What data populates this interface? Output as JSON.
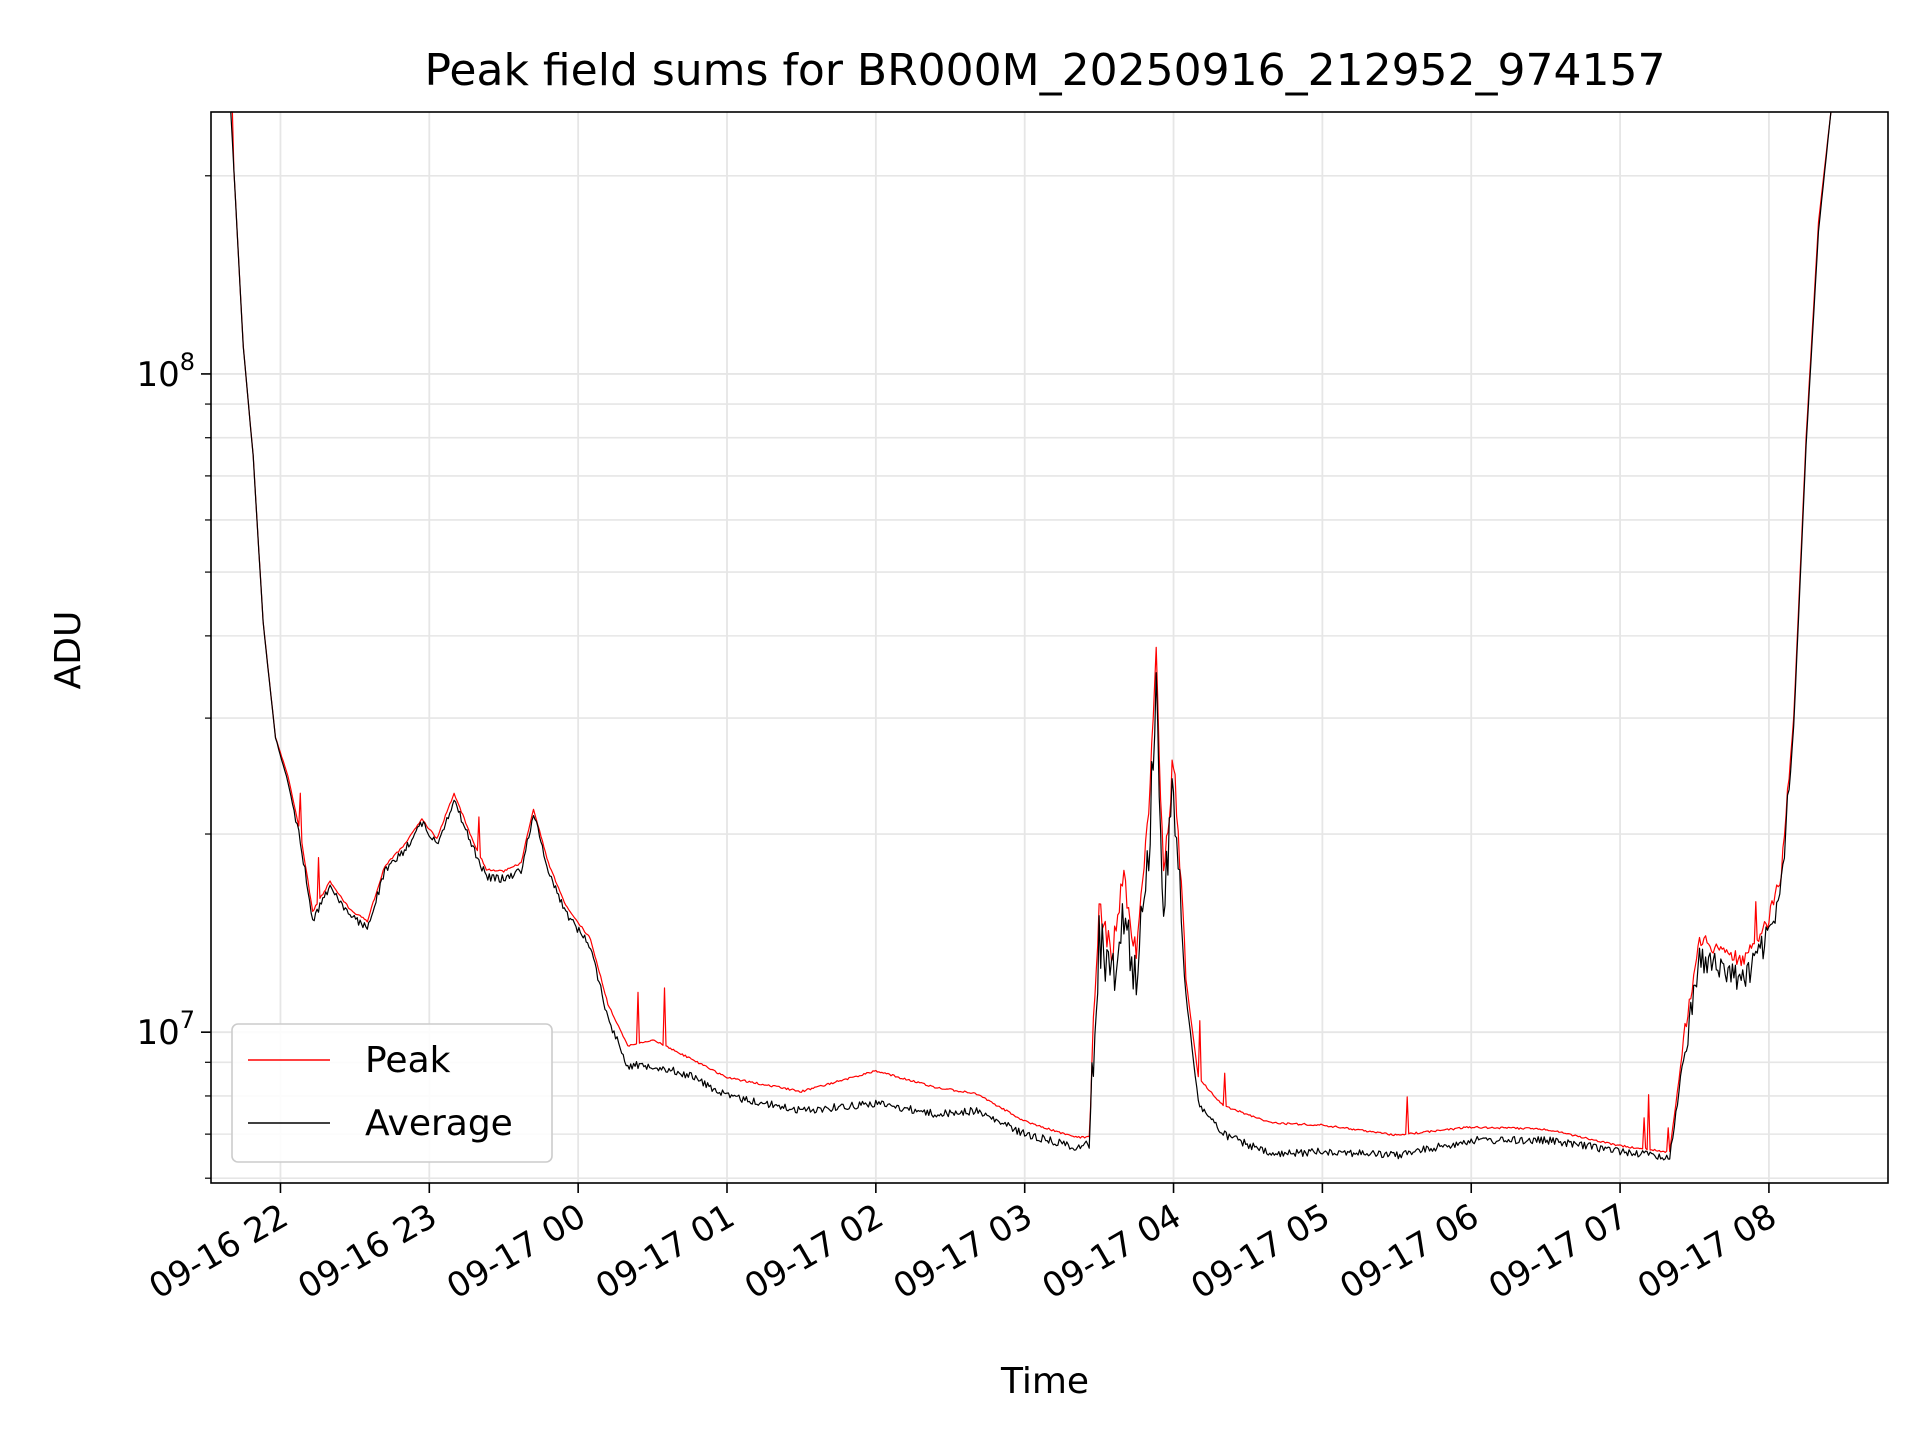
{
  "chart_data": {
    "type": "line",
    "title": "Peak field sums for BR000M_20250916_212952_974157",
    "xlabel": "Time",
    "ylabel": "ADU",
    "y_scale": "log",
    "ylim": [
      5900000,
      250000000
    ],
    "xlim": [
      "2025-09-16 21:32",
      "2025-09-17 08:48"
    ],
    "grid": true,
    "legend_position": "lower left",
    "x_ticks": [
      {
        "t": "2025-09-16 22:00",
        "label": "09-16 22"
      },
      {
        "t": "2025-09-16 23:00",
        "label": "09-16 23"
      },
      {
        "t": "2025-09-17 00:00",
        "label": "09-17 00"
      },
      {
        "t": "2025-09-17 01:00",
        "label": "09-17 01"
      },
      {
        "t": "2025-09-17 02:00",
        "label": "09-17 02"
      },
      {
        "t": "2025-09-17 03:00",
        "label": "09-17 03"
      },
      {
        "t": "2025-09-17 04:00",
        "label": "09-17 04"
      },
      {
        "t": "2025-09-17 05:00",
        "label": "09-17 05"
      },
      {
        "t": "2025-09-17 06:00",
        "label": "09-17 06"
      },
      {
        "t": "2025-09-17 07:00",
        "label": "09-17 07"
      },
      {
        "t": "2025-09-17 08:00",
        "label": "09-17 08"
      }
    ],
    "y_ticks": [
      {
        "value": 10000000,
        "base": "10",
        "exp": "7"
      },
      {
        "value": 100000000,
        "base": "10",
        "exp": "8"
      }
    ],
    "series": [
      {
        "name": "Peak",
        "color": "#ff0000",
        "points": [
          [
            "2025-09-16 21:40",
            250000000
          ],
          [
            "2025-09-16 21:45",
            110000000
          ],
          [
            "2025-09-16 21:49",
            75000000
          ],
          [
            "2025-09-16 21:53",
            42000000
          ],
          [
            "2025-09-16 21:58",
            28000000
          ],
          [
            "2025-09-16 22:03",
            24500000
          ],
          [
            "2025-09-16 22:08",
            20000000
          ],
          [
            "2025-09-16 22:13",
            15200000
          ],
          [
            "2025-09-16 22:20",
            16900000
          ],
          [
            "2025-09-16 22:28",
            15300000
          ],
          [
            "2025-09-16 22:35",
            14700000
          ],
          [
            "2025-09-16 22:42",
            17800000
          ],
          [
            "2025-09-16 22:50",
            19200000
          ],
          [
            "2025-09-16 22:57",
            21000000
          ],
          [
            "2025-09-16 23:03",
            19600000
          ],
          [
            "2025-09-16 23:10",
            23000000
          ],
          [
            "2025-09-16 23:17",
            19700000
          ],
          [
            "2025-09-16 23:23",
            17600000
          ],
          [
            "2025-09-16 23:30",
            17500000
          ],
          [
            "2025-09-16 23:37",
            18000000
          ],
          [
            "2025-09-16 23:42",
            21800000
          ],
          [
            "2025-09-16 23:48",
            18000000
          ],
          [
            "2025-09-16 23:55",
            15500000
          ],
          [
            "2025-09-17 00:05",
            13800000
          ],
          [
            "2025-09-17 00:12",
            11000000
          ],
          [
            "2025-09-17 00:20",
            9500000
          ],
          [
            "2025-09-17 00:30",
            9700000
          ],
          [
            "2025-09-17 00:45",
            9100000
          ],
          [
            "2025-09-17 01:00",
            8500000
          ],
          [
            "2025-09-17 01:30",
            8100000
          ],
          [
            "2025-09-17 02:00",
            8700000
          ],
          [
            "2025-09-17 02:25",
            8200000
          ],
          [
            "2025-09-17 02:40",
            8050000
          ],
          [
            "2025-09-17 03:00",
            7300000
          ],
          [
            "2025-09-17 03:20",
            6900000
          ],
          [
            "2025-09-17 03:26",
            6900000
          ],
          [
            "2025-09-17 03:30",
            15000000
          ],
          [
            "2025-09-17 03:35",
            12500000
          ],
          [
            "2025-09-17 03:40",
            16500000
          ],
          [
            "2025-09-17 03:45",
            12500000
          ],
          [
            "2025-09-17 03:50",
            20000000
          ],
          [
            "2025-09-17 03:53",
            35000000
          ],
          [
            "2025-09-17 03:56",
            16000000
          ],
          [
            "2025-09-17 04:00",
            25000000
          ],
          [
            "2025-09-17 04:05",
            12000000
          ],
          [
            "2025-09-17 04:10",
            8500000
          ],
          [
            "2025-09-17 04:20",
            7700000
          ],
          [
            "2025-09-17 04:40",
            7250000
          ],
          [
            "2025-09-17 05:00",
            7200000
          ],
          [
            "2025-09-17 05:30",
            6950000
          ],
          [
            "2025-09-17 06:00",
            7150000
          ],
          [
            "2025-09-17 06:30",
            7100000
          ],
          [
            "2025-09-17 07:00",
            6700000
          ],
          [
            "2025-09-17 07:20",
            6550000
          ],
          [
            "2025-09-17 07:25",
            9200000
          ],
          [
            "2025-09-17 07:32",
            13500000
          ],
          [
            "2025-09-17 07:40",
            13000000
          ],
          [
            "2025-09-17 07:50",
            12500000
          ],
          [
            "2025-09-17 08:00",
            14500000
          ],
          [
            "2025-09-17 08:05",
            17000000
          ],
          [
            "2025-09-17 08:10",
            30000000
          ],
          [
            "2025-09-17 08:15",
            80000000
          ],
          [
            "2025-09-17 08:20",
            170000000
          ],
          [
            "2025-09-17 08:25",
            250000000
          ]
        ]
      },
      {
        "name": "Average",
        "color": "#000000",
        "points": [
          [
            "2025-09-16 21:40",
            250000000
          ],
          [
            "2025-09-16 21:45",
            110000000
          ],
          [
            "2025-09-16 21:49",
            75000000
          ],
          [
            "2025-09-16 21:53",
            42000000
          ],
          [
            "2025-09-16 21:58",
            28000000
          ],
          [
            "2025-09-16 22:03",
            24000000
          ],
          [
            "2025-09-16 22:08",
            19500000
          ],
          [
            "2025-09-16 22:13",
            14800000
          ],
          [
            "2025-09-16 22:20",
            16700000
          ],
          [
            "2025-09-16 22:28",
            15000000
          ],
          [
            "2025-09-16 22:35",
            14400000
          ],
          [
            "2025-09-16 22:42",
            17500000
          ],
          [
            "2025-09-16 22:50",
            18900000
          ],
          [
            "2025-09-16 22:57",
            20800000
          ],
          [
            "2025-09-16 23:03",
            19300000
          ],
          [
            "2025-09-16 23:10",
            22500000
          ],
          [
            "2025-09-16 23:17",
            19300000
          ],
          [
            "2025-09-16 23:23",
            17200000
          ],
          [
            "2025-09-16 23:30",
            17100000
          ],
          [
            "2025-09-16 23:37",
            17600000
          ],
          [
            "2025-09-16 23:42",
            21500000
          ],
          [
            "2025-09-16 23:48",
            17600000
          ],
          [
            "2025-09-16 23:55",
            15200000
          ],
          [
            "2025-09-17 00:05",
            13500000
          ],
          [
            "2025-09-17 00:12",
            10500000
          ],
          [
            "2025-09-17 00:20",
            8900000
          ],
          [
            "2025-09-17 00:30",
            8900000
          ],
          [
            "2025-09-17 00:45",
            8600000
          ],
          [
            "2025-09-17 01:00",
            8000000
          ],
          [
            "2025-09-17 01:30",
            7600000
          ],
          [
            "2025-09-17 02:00",
            7800000
          ],
          [
            "2025-09-17 02:25",
            7500000
          ],
          [
            "2025-09-17 02:40",
            7600000
          ],
          [
            "2025-09-17 03:00",
            7000000
          ],
          [
            "2025-09-17 03:20",
            6700000
          ],
          [
            "2025-09-17 03:26",
            6750000
          ],
          [
            "2025-09-17 03:30",
            14000000
          ],
          [
            "2025-09-17 03:35",
            12000000
          ],
          [
            "2025-09-17 03:40",
            15500000
          ],
          [
            "2025-09-17 03:45",
            12000000
          ],
          [
            "2025-09-17 03:50",
            19000000
          ],
          [
            "2025-09-17 03:53",
            34000000
          ],
          [
            "2025-09-17 03:56",
            15000000
          ],
          [
            "2025-09-17 04:00",
            24000000
          ],
          [
            "2025-09-17 04:05",
            11500000
          ],
          [
            "2025-09-17 04:10",
            7800000
          ],
          [
            "2025-09-17 04:20",
            7000000
          ],
          [
            "2025-09-17 04:40",
            6500000
          ],
          [
            "2025-09-17 05:00",
            6600000
          ],
          [
            "2025-09-17 05:30",
            6500000
          ],
          [
            "2025-09-17 06:00",
            6850000
          ],
          [
            "2025-09-17 06:30",
            6850000
          ],
          [
            "2025-09-17 07:00",
            6600000
          ],
          [
            "2025-09-17 07:20",
            6450000
          ],
          [
            "2025-09-17 07:25",
            8800000
          ],
          [
            "2025-09-17 07:32",
            13000000
          ],
          [
            "2025-09-17 07:40",
            12500000
          ],
          [
            "2025-09-17 07:50",
            12000000
          ],
          [
            "2025-09-17 08:00",
            14000000
          ],
          [
            "2025-09-17 08:05",
            16500000
          ],
          [
            "2025-09-17 08:10",
            29000000
          ],
          [
            "2025-09-17 08:15",
            78000000
          ],
          [
            "2025-09-17 08:20",
            165000000
          ],
          [
            "2025-09-17 08:25",
            250000000
          ]
        ]
      }
    ],
    "legend": [
      {
        "label": "Peak",
        "color": "#ff0000"
      },
      {
        "label": "Average",
        "color": "#000000"
      }
    ]
  }
}
